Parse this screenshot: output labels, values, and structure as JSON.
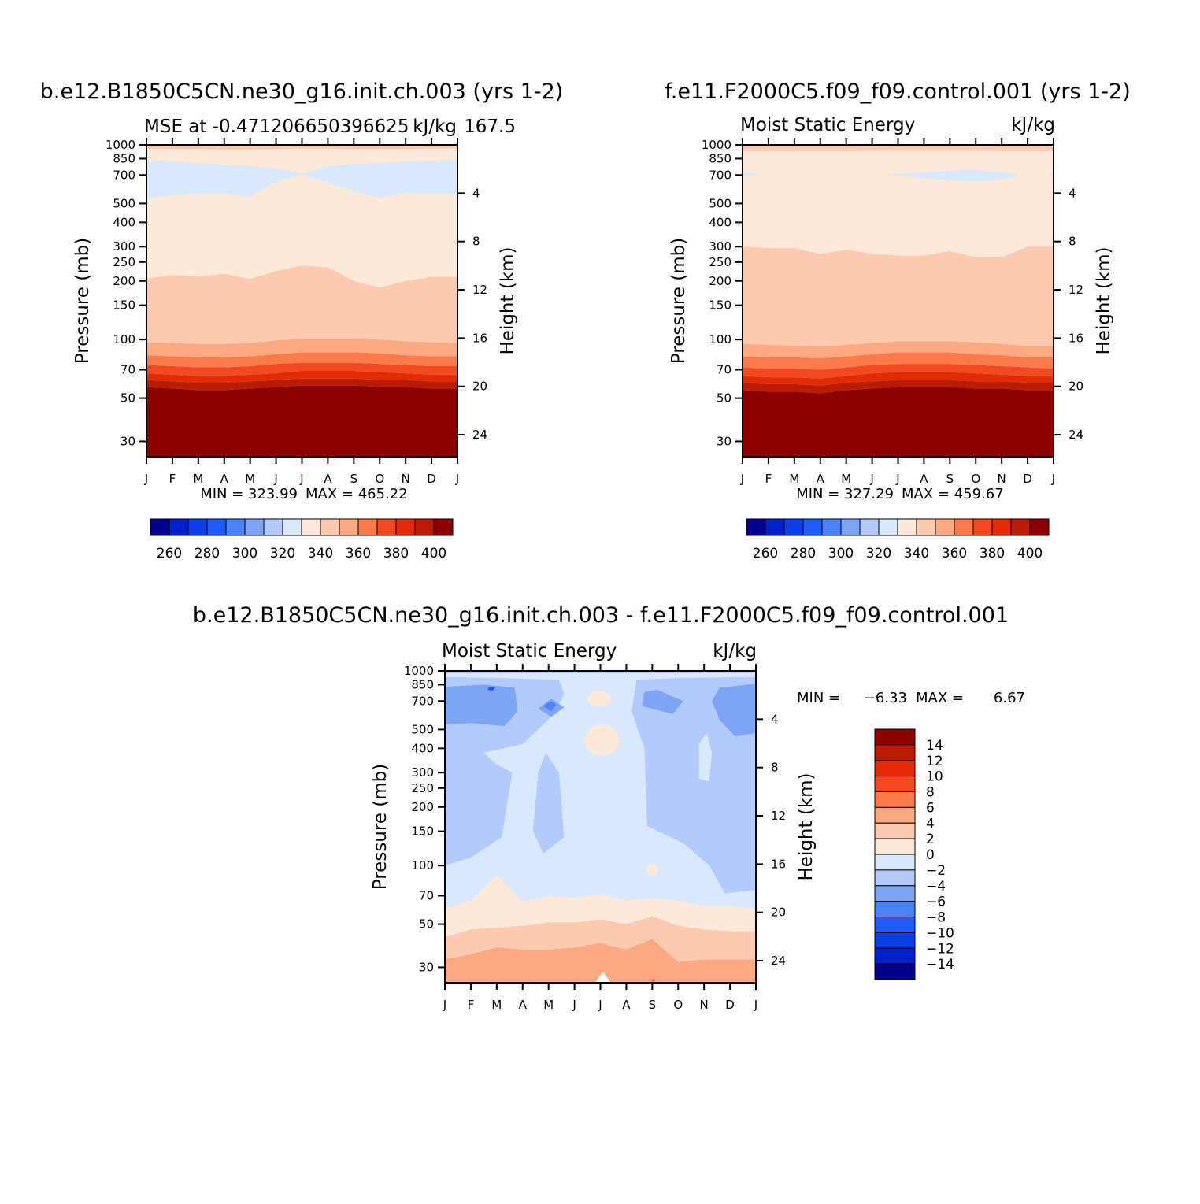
{
  "figure": {
    "diff_title": "b.e12.B1850C5CN.ne30_g16.init.ch.003 - f.e11.F2000C5.f09_f09.control.001"
  },
  "chart_data": [
    {
      "type": "heatmap",
      "title": "b.e12.B1850C5CN.ne30_g16.init.ch.003 (yrs 1-2)",
      "subtitle_left": "MSE at -0.471206650396625",
      "subtitle_right": "kJ/kg",
      "subtitle_extra": "167.5",
      "xlabel": "",
      "ylabel": "Pressure (mb)",
      "y2label": "Height (km)",
      "x_ticks": [
        "J",
        "F",
        "M",
        "A",
        "M",
        "J",
        "J",
        "A",
        "S",
        "O",
        "N",
        "D",
        "J"
      ],
      "y_ticks": [
        30,
        50,
        70,
        100,
        150,
        200,
        250,
        300,
        400,
        500,
        700,
        850,
        1000
      ],
      "y_range_mb": [
        1000,
        25
      ],
      "y2_ticks": [
        4,
        8,
        12,
        16,
        20,
        24
      ],
      "y_scale": "log",
      "min_label": "MIN = 323.99",
      "max_label": "MAX = 465.22",
      "colorbar": {
        "orientation": "horizontal",
        "tick_labels": [
          "260",
          "280",
          "300",
          "320",
          "340",
          "360",
          "380",
          "400"
        ]
      },
      "contour_boundaries_mb": {
        "x": [
          0,
          1,
          2,
          3,
          4,
          5,
          6,
          7,
          8,
          9,
          10,
          11,
          12
        ],
        "levels_above_400": [
          [
            57,
            56,
            55,
            55,
            56,
            57,
            58,
            58,
            58,
            57,
            57,
            56,
            56
          ],
          [
            62,
            61,
            60,
            60,
            61,
            62,
            63,
            63,
            63,
            62,
            62,
            61,
            61
          ],
          [
            67,
            66,
            65,
            65,
            66,
            67,
            69,
            69,
            69,
            68,
            67,
            66,
            66
          ],
          [
            74,
            73,
            72,
            72,
            73,
            75,
            76,
            76,
            76,
            75,
            74,
            73,
            73
          ],
          [
            83,
            82,
            81,
            81,
            82,
            84,
            86,
            86,
            86,
            85,
            83,
            82,
            82
          ],
          [
            97,
            96,
            95,
            95,
            96,
            99,
            101,
            101,
            101,
            100,
            98,
            97,
            96
          ]
        ],
        "level_340": [
          205,
          215,
          210,
          218,
          205,
          225,
          240,
          235,
          200,
          185,
          200,
          210,
          210
        ],
        "level_320_top": [
          530,
          550,
          560,
          560,
          540,
          650,
          700,
          640,
          580,
          530,
          570,
          560,
          560
        ],
        "level_320_bottom": [
          840,
          820,
          810,
          790,
          780,
          760,
          710,
          780,
          800,
          810,
          820,
          830,
          840
        ],
        "level_low": [
          960,
          950,
          950,
          945,
          945,
          950,
          955,
          955,
          950,
          950,
          950,
          955,
          960
        ]
      }
    },
    {
      "type": "heatmap",
      "title": "f.e11.F2000C5.f09_f09.control.001 (yrs 1-2)",
      "subtitle_left": "Moist Static Energy",
      "subtitle_right": "kJ/kg",
      "xlabel": "",
      "ylabel": "Pressure (mb)",
      "y2label": "Height (km)",
      "x_ticks": [
        "J",
        "F",
        "M",
        "A",
        "M",
        "J",
        "J",
        "A",
        "S",
        "O",
        "N",
        "D",
        "J"
      ],
      "y_ticks": [
        30,
        50,
        70,
        100,
        150,
        200,
        250,
        300,
        400,
        500,
        700,
        850,
        1000
      ],
      "y_range_mb": [
        1000,
        25
      ],
      "y2_ticks": [
        4,
        8,
        12,
        16,
        20,
        24
      ],
      "y_scale": "log",
      "min_label": "MIN = 327.29",
      "max_label": "MAX = 459.67",
      "colorbar": {
        "orientation": "horizontal",
        "tick_labels": [
          "260",
          "280",
          "300",
          "320",
          "340",
          "360",
          "380",
          "400"
        ]
      },
      "contour_boundaries_mb": {
        "x": [
          0,
          1,
          2,
          3,
          4,
          5,
          6,
          7,
          8,
          9,
          10,
          11,
          12
        ],
        "levels_above_400": [
          [
            55,
            54,
            54,
            53,
            55,
            56,
            57,
            57,
            57,
            56,
            56,
            55,
            55
          ],
          [
            60,
            59,
            59,
            58,
            60,
            61,
            62,
            62,
            62,
            61,
            61,
            60,
            60
          ],
          [
            65,
            64,
            64,
            63,
            65,
            67,
            68,
            68,
            68,
            67,
            66,
            65,
            65
          ],
          [
            72,
            71,
            71,
            70,
            72,
            74,
            75,
            75,
            75,
            74,
            73,
            72,
            71
          ],
          [
            82,
            81,
            81,
            80,
            82,
            84,
            86,
            86,
            86,
            84,
            83,
            81,
            81
          ],
          [
            95,
            94,
            93,
            92,
            94,
            96,
            98,
            98,
            98,
            97,
            95,
            93,
            93
          ]
        ],
        "level_340": [
          300,
          295,
          295,
          275,
          290,
          275,
          270,
          270,
          285,
          265,
          265,
          300,
          300
        ],
        "level_low": [
          930,
          930,
          930,
          930,
          930,
          932,
          935,
          935,
          935,
          932,
          930,
          930,
          930
        ]
      }
    },
    {
      "type": "heatmap",
      "title": "",
      "subtitle_left": "Moist Static Energy",
      "subtitle_right": "kJ/kg",
      "xlabel": "",
      "ylabel": "Pressure (mb)",
      "y2label": "Height (km)",
      "x_ticks": [
        "J",
        "F",
        "M",
        "A",
        "M",
        "J",
        "J",
        "A",
        "S",
        "O",
        "N",
        "D",
        "J"
      ],
      "y_ticks": [
        30,
        50,
        70,
        100,
        150,
        200,
        250,
        300,
        400,
        500,
        700,
        850,
        1000
      ],
      "y_range_mb": [
        1000,
        25
      ],
      "y2_ticks": [
        4,
        8,
        12,
        16,
        20,
        24
      ],
      "y_scale": "log",
      "min_label": "MIN =",
      "min_value": "-6.33",
      "max_label": "MAX =",
      "max_value": "6.67",
      "colorbar": {
        "orientation": "vertical",
        "tick_labels": [
          "14",
          "12",
          "10",
          "8",
          "6",
          "4",
          "2",
          "0",
          "-2",
          "-4",
          "-6",
          "-8",
          "-10",
          "-12",
          "-14"
        ]
      },
      "contour_boundaries_mb": {
        "x": [
          0,
          1,
          2,
          3,
          4,
          5,
          6,
          7,
          8,
          9,
          10,
          11,
          12
        ],
        "level_4_bottom": [
          33,
          35,
          38,
          37,
          37,
          38,
          40,
          37,
          42,
          32,
          33,
          33,
          33
        ],
        "level_2_bottom": [
          43,
          47,
          48,
          49,
          51,
          51,
          53,
          50,
          55,
          49,
          47,
          46,
          46
        ],
        "level_0_bottom": [
          60,
          66,
          90,
          65,
          70,
          68,
          72,
          66,
          68,
          66,
          62,
          62,
          60
        ]
      }
    }
  ]
}
